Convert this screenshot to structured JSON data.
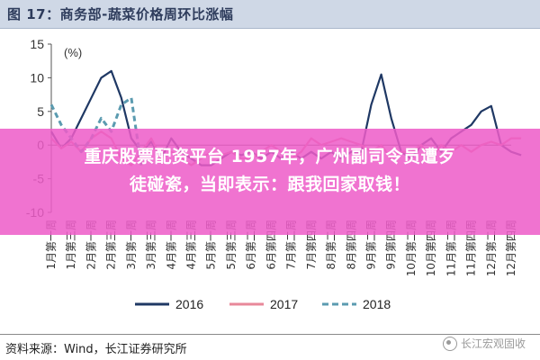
{
  "header": {
    "title": "图 17：商务部-蔬菜价格周环比涨幅"
  },
  "banner": {
    "line1": "重庆股票配资平台 1957年，广州副司令员遭歹",
    "line2": "徒碰瓷，当即表示：跟我回家取钱！"
  },
  "footer": {
    "source": "资料来源：Wind，长江证券研究所",
    "watermark": "长江宏观固收"
  },
  "chart_data": {
    "type": "line",
    "unit_label": "(%)",
    "ylim": [
      -10,
      15
    ],
    "yticks": [
      15,
      10,
      5,
      0,
      -5,
      -10
    ],
    "grid": false,
    "legend_position": "bottom",
    "xticks": [
      "1月第一周",
      "1月第三周",
      "2月第一周",
      "2月第三周",
      "3月第一周",
      "3月第三周",
      "4月第一周",
      "4月第三周",
      "5月第一周",
      "5月第三周",
      "6月第二周",
      "6月第四周",
      "7月第二周",
      "7月第四周",
      "8月第二周",
      "8月第四周",
      "9月第二周",
      "9月第四周",
      "10月第二周",
      "10月第四周",
      "11月第二周",
      "11月第四周",
      "12月第二周",
      "12月第四周"
    ],
    "x": [
      0,
      0.5,
      1,
      1.5,
      2,
      2.5,
      3,
      3.5,
      4,
      4.5,
      5,
      5.5,
      6,
      6.5,
      7,
      7.5,
      8,
      8.5,
      9,
      9.5,
      10,
      10.5,
      11,
      11.5,
      12,
      12.5,
      13,
      13.5,
      14,
      14.5,
      15,
      15.5,
      16,
      16.5,
      17,
      17.5,
      18,
      18.5,
      19,
      19.5,
      20,
      20.5,
      21,
      21.5,
      22,
      22.5,
      23,
      23.5
    ],
    "series": [
      {
        "name": "2016",
        "color": "#1f3864",
        "style": "solid",
        "values": [
          2,
          -0.5,
          1,
          4,
          7,
          10,
          11,
          7,
          1,
          -1,
          0.5,
          -2,
          1,
          -1,
          -2,
          -3,
          -3,
          -2,
          -1,
          -1.5,
          -1,
          -2,
          -1,
          -2,
          -1,
          -2,
          -1,
          -2,
          -1,
          -2,
          -1,
          -1,
          6,
          10.5,
          4,
          -1,
          -2,
          0,
          1,
          -1,
          1,
          2,
          3,
          5,
          5.8,
          0,
          -1,
          -1.5
        ]
      },
      {
        "name": "2017",
        "color": "#e8889a",
        "style": "solid",
        "values": [
          1,
          -0.5,
          0.5,
          -1,
          1,
          2,
          1,
          -2,
          -3,
          -1,
          1,
          -2,
          -1,
          -2,
          -3,
          -2,
          -1,
          -1.5,
          -1,
          -2,
          -2,
          -1,
          0,
          -1,
          -2,
          -1,
          1,
          0,
          0.5,
          1,
          0.5,
          0,
          -1,
          0,
          -2,
          -1,
          -1,
          0,
          -2,
          0,
          -1,
          0,
          -1,
          0,
          0.5,
          0,
          1,
          1
        ]
      },
      {
        "name": "2018",
        "color": "#5b9bb0",
        "style": "dashed",
        "values": [
          6,
          3,
          1,
          -1,
          1,
          4,
          2,
          6,
          7,
          -3,
          null,
          null,
          null,
          null,
          null,
          null,
          null,
          null,
          null,
          null,
          null,
          null,
          null,
          null,
          null,
          null,
          null,
          null,
          null,
          null,
          null,
          null,
          null,
          null,
          null,
          null,
          null,
          null,
          null,
          null,
          null,
          null,
          null,
          null,
          null,
          null,
          null,
          null
        ]
      }
    ]
  }
}
